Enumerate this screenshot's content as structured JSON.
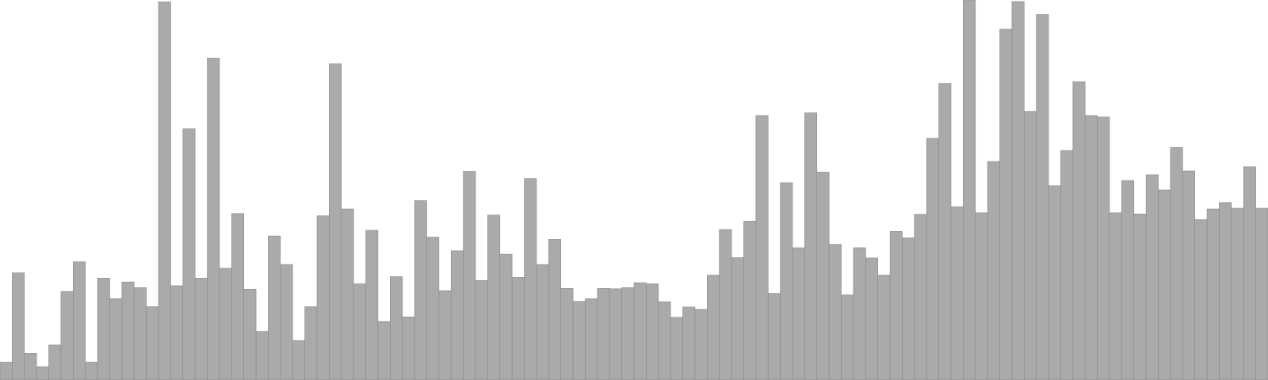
{
  "chart_data": {
    "type": "bar",
    "bar_color": "#aaaaaa",
    "edge_color": "#888888",
    "grid": false,
    "axes_visible": false,
    "ylim": [
      0,
      100
    ],
    "values": [
      4.7,
      28.2,
      7.0,
      3.5,
      9.2,
      23.3,
      31.1,
      4.7,
      26.8,
      21.4,
      25.8,
      24.3,
      19.3,
      99.5,
      24.8,
      66.1,
      26.8,
      84.7,
      29.4,
      43.8,
      23.9,
      12.8,
      37.9,
      30.4,
      10.4,
      19.3,
      43.2,
      83.2,
      45.0,
      25.3,
      39.4,
      15.4,
      27.2,
      16.6,
      47.2,
      37.6,
      23.5,
      34.0,
      54.9,
      26.2,
      43.4,
      33.1,
      27.0,
      53.0,
      30.4,
      37.0,
      24.1,
      20.7,
      21.4,
      24.1,
      24.0,
      24.3,
      25.6,
      25.3,
      20.6,
      16.5,
      19.2,
      18.6,
      27.6,
      39.6,
      32.2,
      41.8,
      69.6,
      22.8,
      51.9,
      34.8,
      70.3,
      54.7,
      35.7,
      22.4,
      34.8,
      32.1,
      27.6,
      39.1,
      37.4,
      43.6,
      63.6,
      78.0,
      45.6,
      100.0,
      44.0,
      57.5,
      92.3,
      99.6,
      70.7,
      96.2,
      51.1,
      60.4,
      78.5,
      69.6,
      69.2,
      44.0,
      52.5,
      43.7,
      54.0,
      50.0,
      61.2,
      55.0,
      42.2,
      45.0,
      46.7,
      45.2,
      56.1,
      45.2
    ]
  }
}
